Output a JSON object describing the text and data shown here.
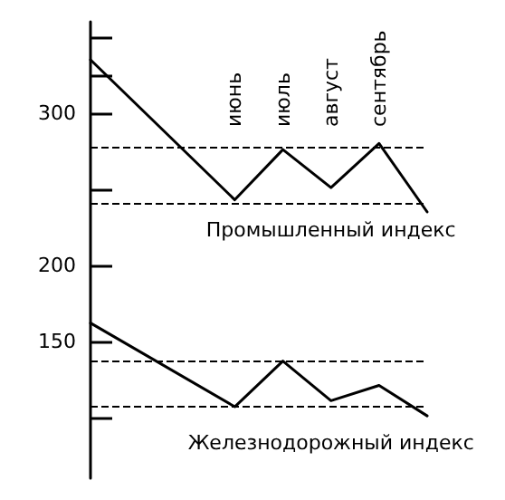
{
  "chart_data": {
    "type": "line",
    "categories": [
      null,
      null,
      null,
      "июнь",
      "июль",
      "август",
      "сентябрь",
      null
    ],
    "series": [
      {
        "name": "Промышленный индекс",
        "color": "#000000",
        "values": [
          335,
          null,
          null,
          243,
          276,
          251,
          280,
          235
        ]
      },
      {
        "name": "Железнодорожный индекс",
        "color": "#000000",
        "values": [
          162,
          null,
          null,
          107,
          137,
          111,
          121,
          101
        ]
      }
    ],
    "ylim": [
      60,
      360
    ],
    "yticks": [
      {
        "value": 100,
        "label": null
      },
      150,
      200,
      {
        "value": 250,
        "label": null
      },
      300,
      {
        "value": 325,
        "label": null
      },
      {
        "value": 350,
        "label": null
      }
    ],
    "ref_lines": [
      {
        "axis": "y",
        "value": 277,
        "color": "#000000",
        "line_style": "dashed"
      },
      {
        "axis": "y",
        "value": 241,
        "color": "#000000",
        "line_style": "dashed"
      },
      {
        "axis": "y",
        "value": 137,
        "color": "#000000",
        "line_style": "dashed"
      },
      {
        "axis": "y",
        "value": 107,
        "color": "#000000",
        "line_style": "dashed"
      }
    ],
    "grid": false,
    "legend": false,
    "marker": "none",
    "line_style": "solid"
  }
}
